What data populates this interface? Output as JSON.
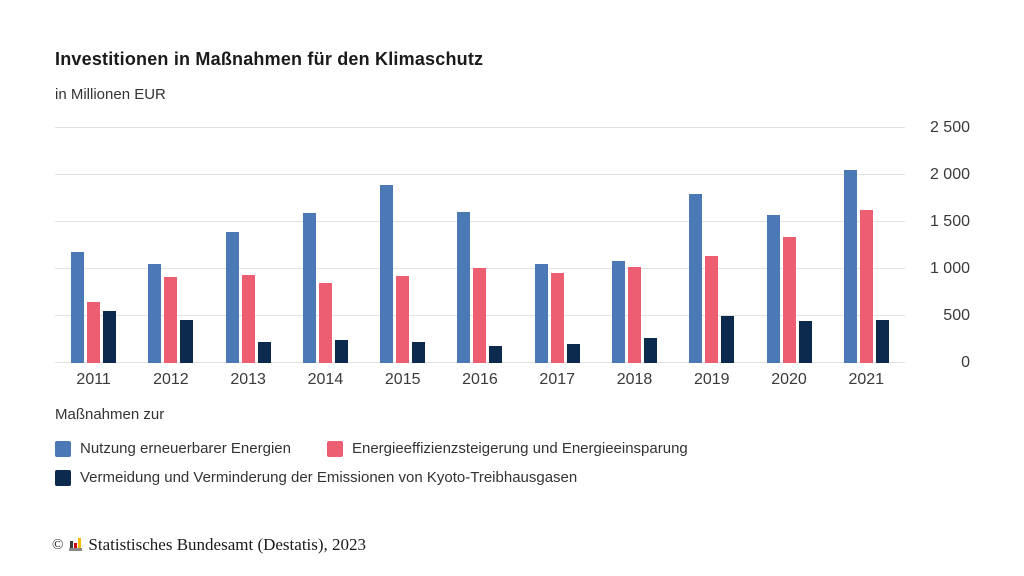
{
  "header": {
    "title": "Investitionen in Maßnahmen für den Klimaschutz",
    "subtitle": "in Millionen EUR"
  },
  "chart_data": {
    "type": "bar",
    "title": "Investitionen in Maßnahmen für den Klimaschutz",
    "subtitle": "in Millionen EUR",
    "xlabel": "",
    "ylabel": "in Millionen EUR",
    "categories": [
      "2011",
      "2012",
      "2013",
      "2014",
      "2015",
      "2016",
      "2017",
      "2018",
      "2019",
      "2020",
      "2021"
    ],
    "series": [
      {
        "name": "Nutzung erneuerbarer Energien",
        "color": "#4a79b5",
        "values": [
          1180,
          1050,
          1390,
          1600,
          1890,
          1610,
          1050,
          1090,
          1800,
          1570,
          2050
        ]
      },
      {
        "name": "Energieeffizienzsteigerung und Energieeinsparung",
        "color": "#ee5e72",
        "values": [
          650,
          920,
          940,
          850,
          930,
          1010,
          960,
          1020,
          1140,
          1340,
          1630
        ]
      },
      {
        "name": "Vermeidung und Verminderung der Emissionen von Kyoto-Treibhausgasen",
        "color": "#0c2a4d",
        "values": [
          550,
          460,
          220,
          250,
          220,
          180,
          200,
          270,
          500,
          450,
          460
        ]
      }
    ],
    "ylim": [
      0,
      2500
    ],
    "yticks": [
      0,
      500,
      1000,
      1500,
      2000,
      2500
    ],
    "ytick_labels": [
      "0",
      "500",
      "1 000",
      "1 500",
      "2 000",
      "2 500"
    ],
    "grid": true,
    "legend_position": "bottom",
    "legend_heading": "Maßnahmen zur"
  },
  "legend": {
    "heading": "Maßnahmen zur"
  },
  "footer": {
    "copyright": "©",
    "logo": "destatis-mini-barchart-logo",
    "text": "Statistisches Bundesamt (Destatis), 2023"
  }
}
